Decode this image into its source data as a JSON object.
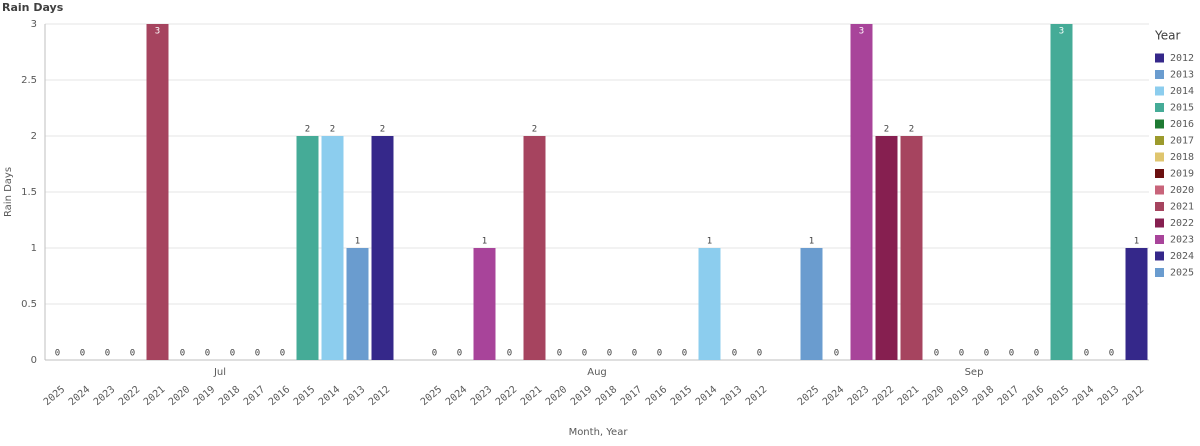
{
  "chart_data": {
    "type": "bar",
    "title": "Rain Days",
    "y_label": "Rain Days",
    "x_label": "Month, Year",
    "ylim": [
      0,
      3
    ],
    "yticks": [
      0,
      0.5,
      1,
      1.5,
      2,
      2.5,
      3
    ],
    "grid": true,
    "legend": {
      "title": "Year",
      "position": "right",
      "items": [
        {
          "name": "2012",
          "color": "#35288a"
        },
        {
          "name": "2013",
          "color": "#6a9ccf"
        },
        {
          "name": "2014",
          "color": "#8ccdee"
        },
        {
          "name": "2015",
          "color": "#45ab97"
        },
        {
          "name": "2016",
          "color": "#1e7a33"
        },
        {
          "name": "2017",
          "color": "#9c9a2c"
        },
        {
          "name": "2018",
          "color": "#dfc56e"
        },
        {
          "name": "2019",
          "color": "#6b0f0f"
        },
        {
          "name": "2020",
          "color": "#c8647a"
        },
        {
          "name": "2021",
          "color": "#a6445f"
        },
        {
          "name": "2022",
          "color": "#861f50"
        },
        {
          "name": "2023",
          "color": "#a8449a"
        },
        {
          "name": "2024",
          "color": "#35288a"
        },
        {
          "name": "2025",
          "color": "#6a9ccf"
        }
      ]
    },
    "groups": [
      {
        "name": "Jul",
        "categories": [
          "2025",
          "2024",
          "2023",
          "2022",
          "2021",
          "2020",
          "2019",
          "2018",
          "2017",
          "2016",
          "2015",
          "2014",
          "2013",
          "2012"
        ],
        "values": [
          0,
          0,
          0,
          0,
          3,
          0,
          0,
          0,
          0,
          0,
          2,
          2,
          1,
          2
        ]
      },
      {
        "name": "Aug",
        "categories": [
          "2025",
          "2024",
          "2023",
          "2022",
          "2021",
          "2020",
          "2019",
          "2018",
          "2017",
          "2016",
          "2015",
          "2014",
          "2013",
          "2012"
        ],
        "values": [
          0,
          0,
          1,
          0,
          2,
          0,
          0,
          0,
          0,
          0,
          0,
          1,
          0,
          0
        ]
      },
      {
        "name": "Sep",
        "categories": [
          "2025",
          "2024",
          "2023",
          "2022",
          "2021",
          "2020",
          "2019",
          "2018",
          "2017",
          "2016",
          "2015",
          "2014",
          "2013",
          "2012"
        ],
        "values": [
          1,
          0,
          3,
          2,
          2,
          0,
          0,
          0,
          0,
          0,
          3,
          0,
          0,
          1
        ]
      }
    ]
  }
}
